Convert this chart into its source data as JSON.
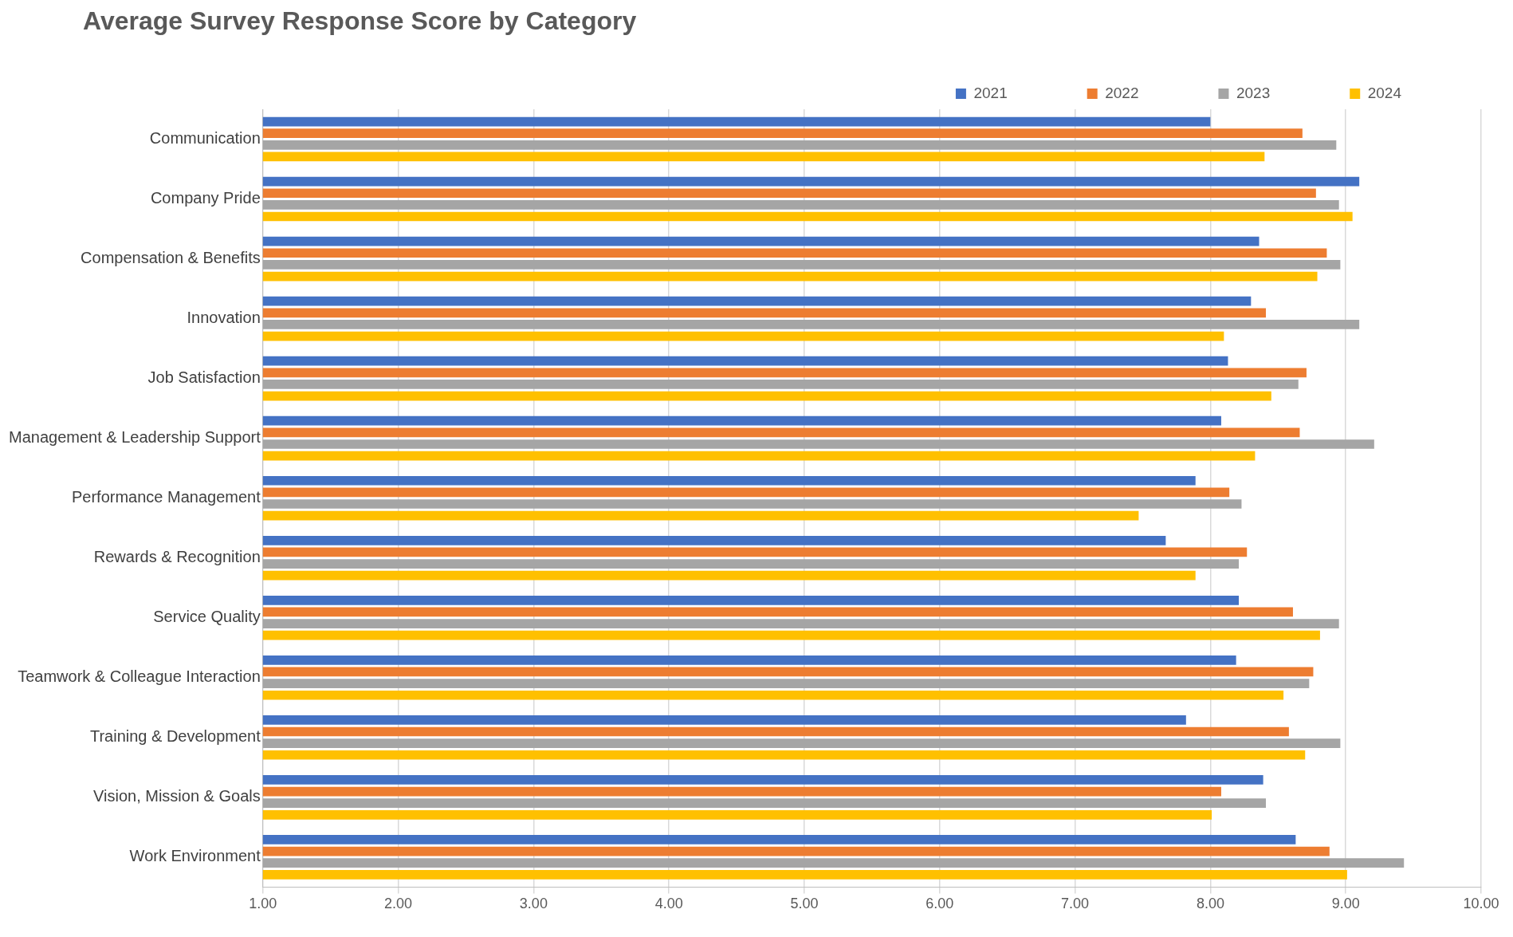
{
  "chart_data": {
    "type": "bar",
    "orientation": "horizontal",
    "title": "Average Survey Response Score by Category",
    "categories": [
      "Communication",
      "Company Pride",
      "Compensation & Benefits",
      "Innovation",
      "Job Satisfaction",
      "Management & Leadership Support",
      "Performance Management",
      "Rewards & Recognition",
      "Service Quality",
      "Teamwork & Colleague Interaction",
      "Training & Development",
      "Vision, Mission & Goals",
      "Work Environment"
    ],
    "series": [
      {
        "name": "2021",
        "color": "#4472c4",
        "values": [
          8.0,
          9.1,
          8.36,
          8.3,
          8.13,
          8.08,
          7.89,
          7.67,
          8.21,
          8.19,
          7.82,
          8.39,
          8.63
        ]
      },
      {
        "name": "2022",
        "color": "#ed7d31",
        "values": [
          8.68,
          8.78,
          8.86,
          8.41,
          8.71,
          8.66,
          8.14,
          8.27,
          8.61,
          8.76,
          8.58,
          8.08,
          8.88
        ]
      },
      {
        "name": "2023",
        "color": "#a5a5a5",
        "values": [
          8.93,
          8.95,
          8.96,
          9.1,
          8.65,
          9.21,
          8.23,
          8.21,
          8.95,
          8.73,
          8.96,
          8.41,
          9.43
        ]
      },
      {
        "name": "2024",
        "color": "#ffc000",
        "values": [
          8.4,
          9.05,
          8.79,
          8.1,
          8.45,
          8.33,
          7.47,
          7.89,
          8.81,
          8.54,
          8.7,
          8.01,
          9.01
        ]
      }
    ],
    "xlim": [
      1,
      10
    ],
    "xticks": [
      {
        "value": 1,
        "label": "1.00"
      },
      {
        "value": 2,
        "label": "2.00"
      },
      {
        "value": 3,
        "label": "3.00"
      },
      {
        "value": 4,
        "label": "4.00"
      },
      {
        "value": 5,
        "label": "5.00"
      },
      {
        "value": 6,
        "label": "6.00"
      },
      {
        "value": 7,
        "label": "7.00"
      },
      {
        "value": 8,
        "label": "8.00"
      },
      {
        "value": 9,
        "label": "9.00"
      },
      {
        "value": 10,
        "label": "10.00"
      }
    ],
    "grid": "x",
    "legend": "top right"
  }
}
